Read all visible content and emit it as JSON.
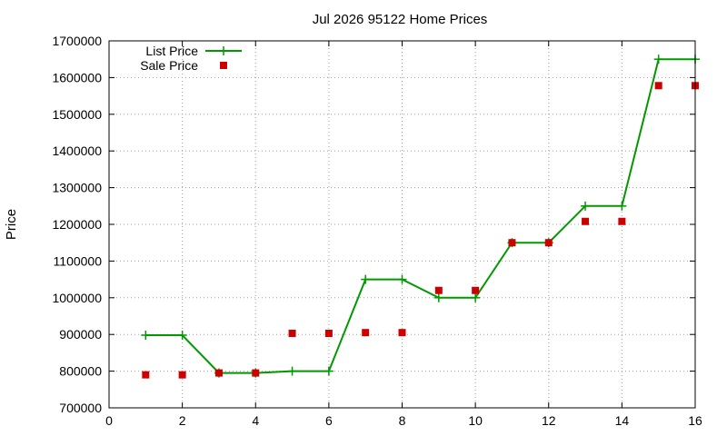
{
  "chart_data": {
    "type": "line",
    "title": "Jul 2026 95122 Home Prices",
    "xlabel": "",
    "ylabel": "Price",
    "xlim": [
      0,
      16
    ],
    "ylim": [
      700000,
      1700000
    ],
    "x_ticks": [
      0,
      2,
      4,
      6,
      8,
      10,
      12,
      14,
      16
    ],
    "y_ticks": [
      700000,
      800000,
      900000,
      1000000,
      1100000,
      1200000,
      1300000,
      1400000,
      1500000,
      1600000,
      1700000
    ],
    "grid": true,
    "legend_position": "top-left",
    "series": [
      {
        "name": "List Price",
        "style": "line+points",
        "color": "#009900",
        "marker": "plus",
        "x": [
          1,
          2,
          3,
          4,
          5,
          6,
          7,
          8,
          9,
          10,
          11,
          12,
          13,
          14,
          15,
          16
        ],
        "values": [
          898000,
          898000,
          795000,
          795000,
          800000,
          800000,
          1050000,
          1050000,
          1000000,
          1000000,
          1150000,
          1150000,
          1250000,
          1250000,
          1650000,
          1650000
        ]
      },
      {
        "name": "Sale Price",
        "style": "points",
        "color": "#cc0000",
        "marker": "square",
        "x": [
          1,
          2,
          3,
          4,
          5,
          6,
          7,
          8,
          9,
          10,
          11,
          12,
          13,
          14,
          15,
          16
        ],
        "values": [
          790000,
          790000,
          795000,
          795000,
          903000,
          903000,
          905000,
          905000,
          1020000,
          1020000,
          1150000,
          1150000,
          1208000,
          1208000,
          1578000,
          1578000
        ]
      }
    ]
  }
}
